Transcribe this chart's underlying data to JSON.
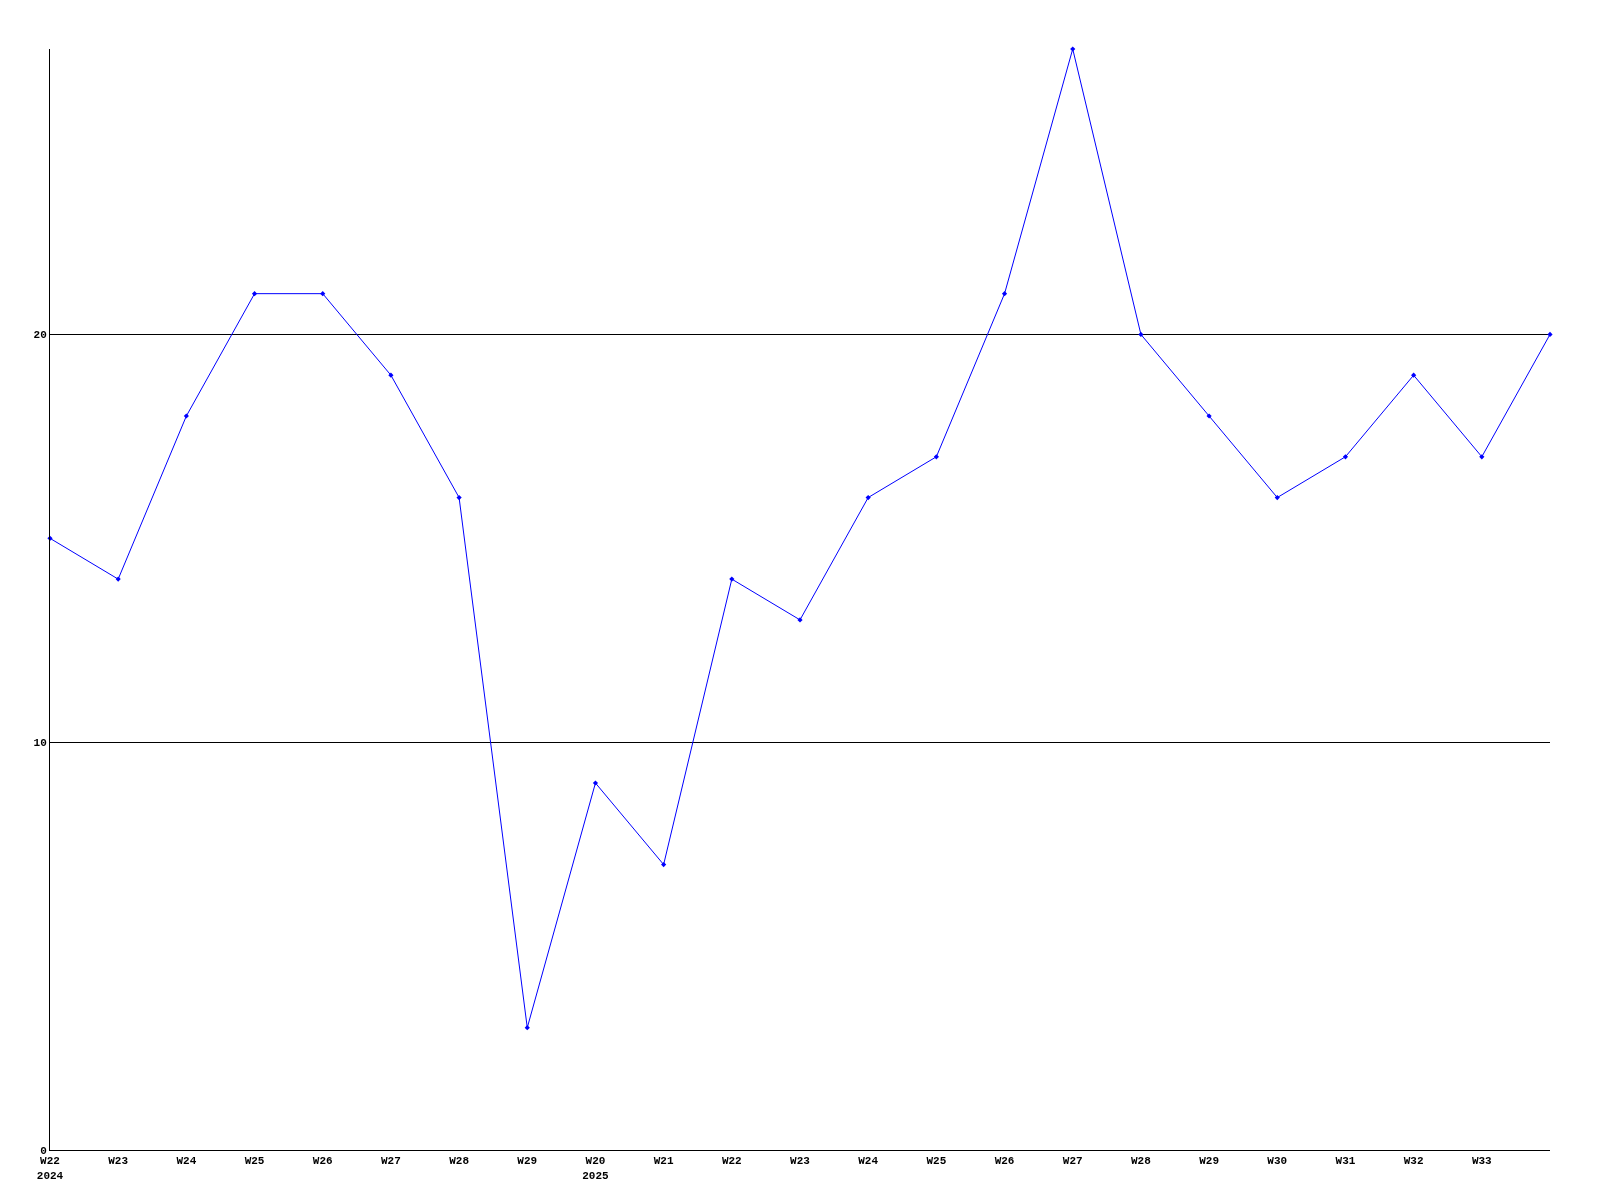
{
  "chart_data": {
    "type": "line",
    "categories": [
      "W22\n2024",
      "W23",
      "W24",
      "W25",
      "W26",
      "W27",
      "W28",
      "W29",
      "W20\n2025",
      "W21",
      "W22",
      "W23",
      "W24",
      "W25",
      "W26",
      "W27",
      "W28",
      "W29",
      "W30",
      "W31",
      "W32",
      "W33",
      null
    ],
    "series": [
      {
        "color": "#0000ff",
        "values": [
          15,
          14,
          18,
          21,
          21,
          19,
          16,
          3,
          9,
          7,
          14,
          13,
          16,
          17,
          21,
          27,
          20,
          18,
          16,
          17,
          19,
          17,
          20
        ]
      }
    ],
    "ylim": [
      0,
      27
    ],
    "yticks": [
      0,
      10,
      20
    ],
    "grid": "y",
    "marker": "diamond",
    "line_style": "solid",
    "legend": false
  }
}
